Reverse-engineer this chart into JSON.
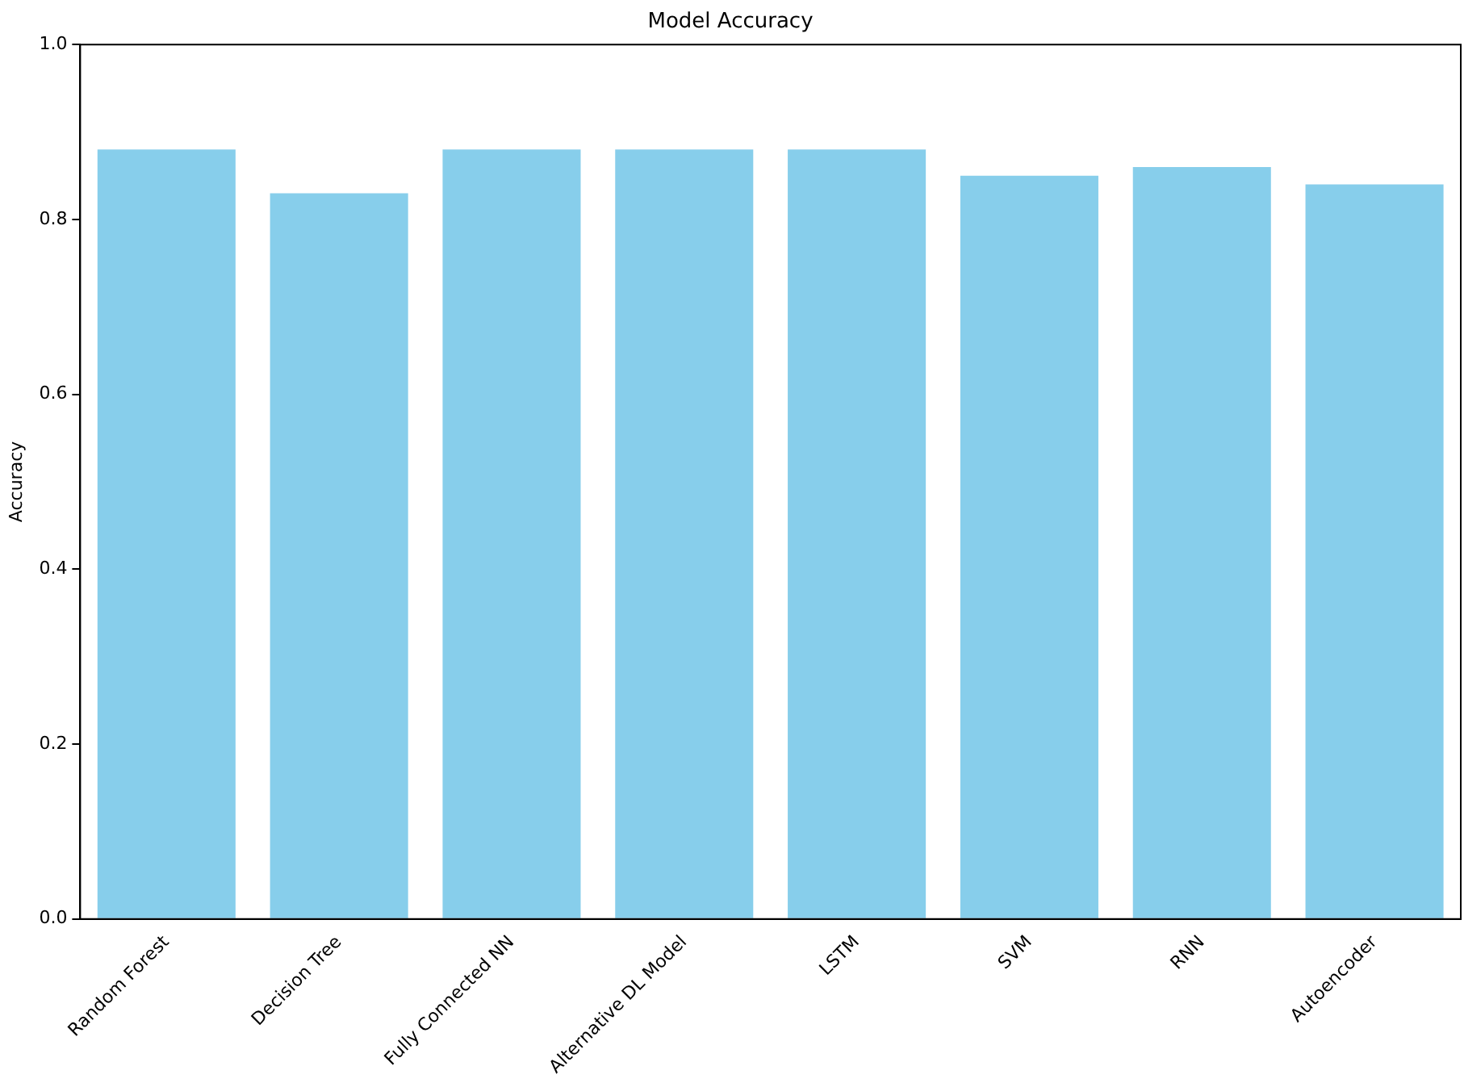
{
  "chart_data": {
    "type": "bar",
    "title": "Model Accuracy",
    "ylabel": "Accuracy",
    "categories": [
      "Random Forest",
      "Decision Tree",
      "Fully Connected NN",
      "Alternative DL Model",
      "LSTM",
      "SVM",
      "RNN",
      "Autoencoder"
    ],
    "values": [
      0.88,
      0.83,
      0.88,
      0.88,
      0.88,
      0.85,
      0.86,
      0.84
    ],
    "color": "#87ceeb",
    "ylim": [
      0,
      1.0
    ],
    "yticks": [
      {
        "value": 0,
        "label": "0.0"
      },
      0.2,
      0.4,
      0.6,
      0.8,
      {
        "value": 1,
        "label": "1.0"
      }
    ],
    "grid": false,
    "legend": false
  }
}
